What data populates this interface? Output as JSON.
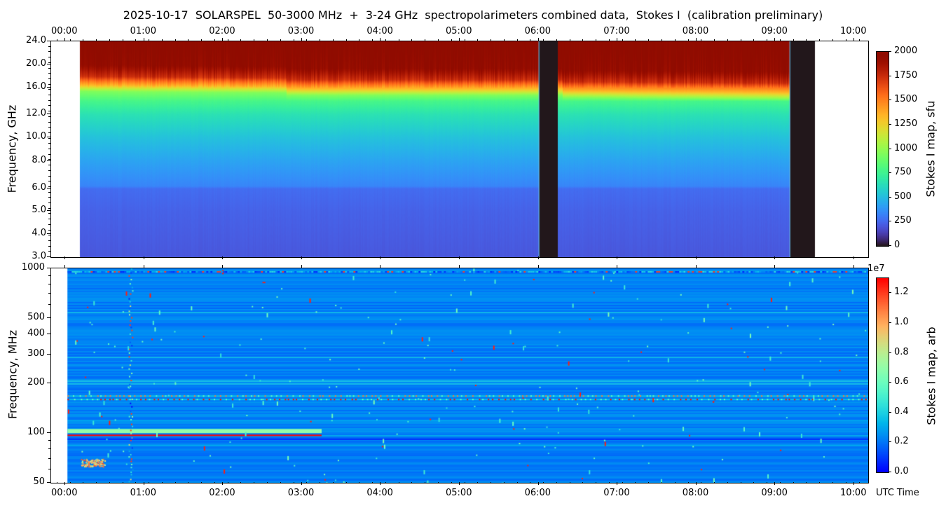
{
  "title": "2025-10-17  SOLARSPEL  50-3000 MHz  +  3-24 GHz  spectropolarimeters combined data,  Stokes I  (calibration preliminary)",
  "chart_data": [
    {
      "type": "heatmap",
      "panel": "top",
      "colormap": "turbo",
      "ylabel": "Frequency, GHz",
      "yticks": [
        "24.0",
        "20.0",
        "16.0",
        "12.0",
        "10.0",
        "8.0",
        "6.0",
        "5.0",
        "4.0",
        "3.0"
      ],
      "ylim": [
        3.0,
        24.0
      ],
      "xticks": [
        "00:00",
        "01:00",
        "02:00",
        "03:00",
        "04:00",
        "05:00",
        "06:00",
        "07:00",
        "08:00",
        "09:00",
        "10:00"
      ],
      "xticks_position": "top",
      "xlim_hours": [
        -0.18,
        10.18
      ],
      "data_time_range_hours": [
        0.18,
        9.5
      ],
      "gaps_hours": [
        [
          6.0,
          6.24
        ],
        [
          9.18,
          9.5
        ]
      ],
      "frequency_profile": {
        "freq_ghz": [
          3.0,
          5.0,
          6.0,
          6.2,
          8.0,
          10.0,
          12.0,
          14.0,
          15.5,
          16.5,
          18.0,
          20.0,
          24.0
        ],
        "value_sfu": [
          200,
          230,
          260,
          330,
          420,
          520,
          650,
          780,
          950,
          1350,
          1750,
          1950,
          2000
        ]
      },
      "colorbar": {
        "label": "Stokes I map, sfu",
        "min": 0,
        "max": 2000,
        "ticks": [
          "0",
          "250",
          "500",
          "750",
          "1000",
          "1250",
          "1500",
          "1750",
          "2000"
        ]
      }
    },
    {
      "type": "heatmap",
      "panel": "bottom",
      "colormap": "rainbow",
      "ylabel": "Frequency, MHz",
      "yscale": "log",
      "yticks": [
        "1000",
        "500",
        "400",
        "300",
        "200",
        "100",
        "50"
      ],
      "ylim": [
        50,
        1000
      ],
      "xlabel": "UTC Time",
      "xticks": [
        "00:00",
        "01:00",
        "02:00",
        "03:00",
        "04:00",
        "05:00",
        "06:00",
        "07:00",
        "08:00",
        "09:00",
        "10:00"
      ],
      "xlim_hours": [
        -0.18,
        10.18
      ],
      "data_time_range_hours": [
        0.03,
        10.18
      ],
      "background_value": 0.22,
      "features": [
        {
          "kind": "band",
          "freq_mhz": [
            100,
            106
          ],
          "hours": [
            0.03,
            3.25
          ],
          "value": 0.7
        },
        {
          "kind": "line",
          "freq_mhz": 97,
          "hours": [
            0.03,
            3.25
          ],
          "value": 1.3
        },
        {
          "kind": "dotted-line",
          "freq_mhz": 160,
          "hours": [
            0.03,
            10.18
          ],
          "value": 1.3
        },
        {
          "kind": "dotted-line",
          "freq_mhz": 168,
          "hours": [
            0.03,
            10.18
          ],
          "value": 1.1
        },
        {
          "kind": "blob",
          "freq_mhz": [
            63,
            70
          ],
          "hours": [
            0.2,
            0.5
          ],
          "value": 1.2
        },
        {
          "kind": "vertical-dotted",
          "freq_mhz": [
            50,
            1000
          ],
          "hours": [
            0.8,
            0.85
          ],
          "value": 0.9
        },
        {
          "kind": "line",
          "freq_mhz": 92,
          "hours": [
            0.03,
            10.18
          ],
          "value": 0.05
        }
      ],
      "colorbar": {
        "label": "Stokes I map, arb",
        "offset": "1e7",
        "min": 0.0,
        "max": 1.3,
        "ticks": [
          "0.0",
          "0.2",
          "0.4",
          "0.6",
          "0.8",
          "1.0",
          "1.2"
        ]
      }
    }
  ],
  "colors": {
    "gap": "#30123b",
    "axis": "#000000"
  }
}
